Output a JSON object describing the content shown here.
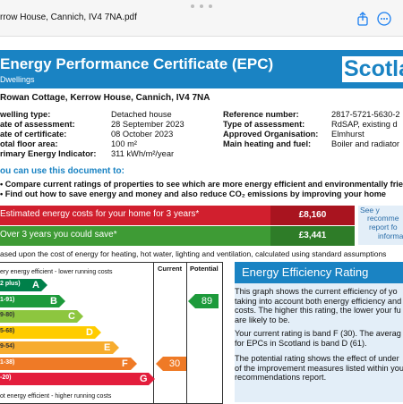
{
  "viewer": {
    "filename": "rrow House, Cannich, IV4 7NA.pdf",
    "icons": [
      "share-icon",
      "more-icon"
    ]
  },
  "header": {
    "title": "Energy Performance Certificate (EPC)",
    "subtitle": "Dwellings",
    "country": "Scotla"
  },
  "property": {
    "address": "Rowan Cottage, Kerrow House, Cannich, IV4 7NA",
    "left": [
      {
        "label": "welling type:",
        "value": "Detached house"
      },
      {
        "label": "ate of assessment:",
        "value": "28 September 2023"
      },
      {
        "label": "ate of certificate:",
        "value": "08 October 2023"
      },
      {
        "label": "otal floor area:",
        "value": "100 m²"
      },
      {
        "label": "rimary Energy Indicator:",
        "value": "311 kWh/m²/year"
      }
    ],
    "right": [
      {
        "label": "Reference number:",
        "value": "2817-5721-5630-2"
      },
      {
        "label": "Type of assessment:",
        "value": "RdSAP, existing d"
      },
      {
        "label": "Approved Organisation:",
        "value": "Elmhurst"
      },
      {
        "label": "Main heating and fuel:",
        "value": "Boiler and radiator"
      }
    ]
  },
  "usage": {
    "title": "ou can use this document to:",
    "lines": [
      "Compare current ratings of properties to see which are more energy efficient and environmentally frie",
      "Find out how to save energy and money and also reduce CO₂ emissions by improving your home"
    ]
  },
  "costs": {
    "estimated_label": "Estimated energy costs for your home for 3 years*",
    "estimated_value": "£8,160",
    "save_label": "Over 3 years you could save*",
    "save_value": "£3,441",
    "see_lines": [
      "See y",
      "recomme",
      "report fo",
      "informa"
    ],
    "colors": {
      "red": "#d11f2e",
      "green": "#3e9b35",
      "red_value": "#a9141f",
      "green_value": "#2e7c28"
    }
  },
  "based_note": "ased upon the cost of energy for heating, hot water, lighting and ventilation, calculated using standard assumptions",
  "rating_chart": {
    "top_note": "ery energy efficient - lower running costs",
    "bottom_note": "ot energy efficient - higher running costs",
    "current_header": "Current",
    "potential_header": "Potential",
    "bands": [
      {
        "range": "2 plus)",
        "letter": "A",
        "color": "#00804a"
      },
      {
        "range": "1-91)",
        "letter": "B",
        "color": "#1d9a3b"
      },
      {
        "range": "9-80)",
        "letter": "C",
        "color": "#8dc63f"
      },
      {
        "range": "5-68)",
        "letter": "D",
        "color": "#ffcc00"
      },
      {
        "range": "9-54)",
        "letter": "E",
        "color": "#f7ac2e"
      },
      {
        "range": "1-38)",
        "letter": "F",
        "color": "#ef7a26"
      },
      {
        "range": "-20)",
        "letter": "G",
        "color": "#e31d3c"
      }
    ],
    "current": {
      "value": "30",
      "band": "F",
      "color": "#ef7a26"
    },
    "potential": {
      "value": "89",
      "band": "B",
      "color": "#1d9a3b"
    }
  },
  "efficiency": {
    "heading": "Energy Efficiency Rating",
    "para1": [
      "This graph shows the current efficiency of yo",
      "taking into account both energy efficiency and",
      "costs. The higher this rating, the lower your fu",
      "are likely to be."
    ],
    "para2": [
      "Your current rating is band F (30). The averag",
      "for EPCs in Scotland is band D (61)."
    ],
    "para3": [
      "The potential rating shows the effect of under",
      "of the improvement measures listed within you",
      "recommendations report."
    ]
  }
}
